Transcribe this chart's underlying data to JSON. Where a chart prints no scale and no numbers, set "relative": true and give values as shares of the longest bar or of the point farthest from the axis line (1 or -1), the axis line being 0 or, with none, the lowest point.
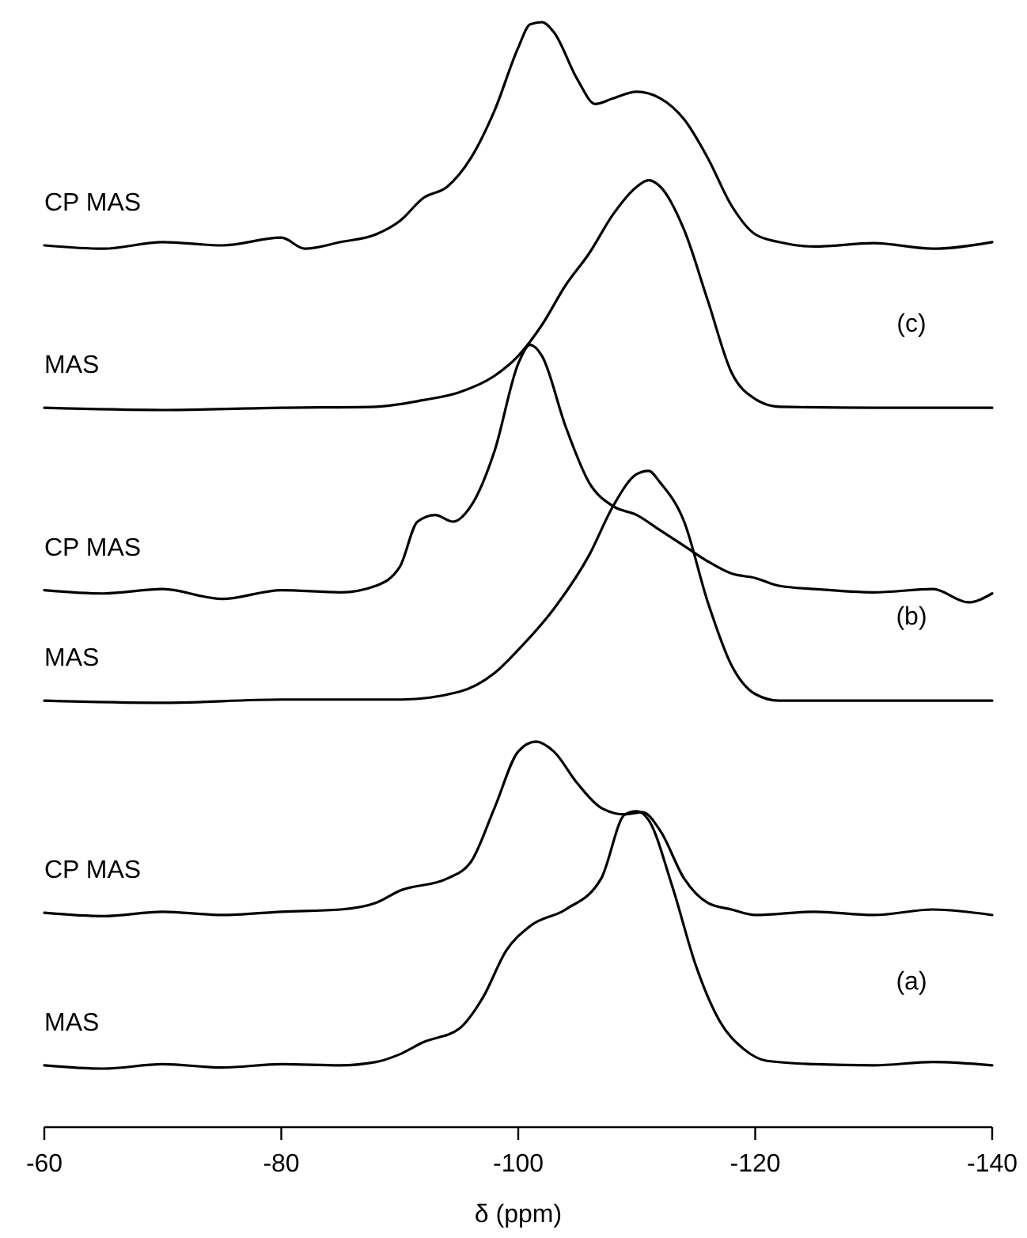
{
  "chart_data": {
    "type": "line",
    "relative": true,
    "xlabel": "δ (ppm)",
    "xlim": [
      -60,
      -140
    ],
    "xticks": [
      -60,
      -80,
      -100,
      -120,
      -140
    ],
    "marker": "none",
    "line_style": "solid",
    "series": [
      {
        "name": "MAS",
        "color": "#000000",
        "x": [
          -60,
          -65,
          -70,
          -75,
          -80,
          -85,
          -88,
          -90,
          -92,
          -95,
          -97,
          -99,
          -101,
          -104,
          -107,
          -109,
          -110,
          -111,
          -113,
          -115,
          -117,
          -119,
          -121,
          -125,
          -130,
          -135,
          -140
        ],
        "values": [
          0.056,
          0.053,
          0.057,
          0.054,
          0.057,
          0.056,
          0.059,
          0.066,
          0.077,
          0.089,
          0.117,
          0.16,
          0.182,
          0.197,
          0.225,
          0.283,
          0.286,
          0.278,
          0.218,
          0.146,
          0.096,
          0.071,
          0.06,
          0.057,
          0.056,
          0.059,
          0.056
        ]
      },
      {
        "name": "CP MAS",
        "color": "#000000",
        "x": [
          -60,
          -65,
          -70,
          -75,
          -80,
          -85,
          -88,
          -90,
          -94,
          -96,
          -98,
          -100,
          -101.5,
          -103,
          -105,
          -107,
          -109,
          -110.5,
          -112,
          -114,
          -116,
          -118,
          -120,
          -125,
          -130,
          -135,
          -140
        ],
        "values": [
          0.194,
          0.191,
          0.195,
          0.192,
          0.195,
          0.197,
          0.203,
          0.214,
          0.225,
          0.24,
          0.289,
          0.34,
          0.349,
          0.34,
          0.311,
          0.289,
          0.283,
          0.285,
          0.268,
          0.225,
          0.203,
          0.197,
          0.192,
          0.195,
          0.192,
          0.197,
          0.192
        ]
      },
      {
        "name": "MAS",
        "color": "#000000",
        "x": [
          -60,
          -70,
          -80,
          -90,
          -95,
          -98,
          -100,
          -103,
          -106,
          -108,
          -110,
          -111,
          -112,
          -114,
          -116,
          -118,
          -120,
          -122,
          -130,
          -140
        ],
        "values": [
          0.386,
          0.384,
          0.387,
          0.387,
          0.394,
          0.411,
          0.432,
          0.469,
          0.518,
          0.562,
          0.591,
          0.594,
          0.583,
          0.548,
          0.475,
          0.418,
          0.392,
          0.386,
          0.386,
          0.386
        ]
      },
      {
        "name": "CP MAS",
        "color": "#000000",
        "x": [
          -60,
          -65,
          -70,
          -75,
          -80,
          -85,
          -88,
          -90,
          -91.5,
          -93,
          -94.5,
          -96,
          -98,
          -100,
          -101,
          -102,
          -104,
          -106,
          -108,
          -110,
          -112,
          -114,
          -116,
          -118,
          -120,
          -122,
          -125,
          -130,
          -135,
          -138,
          -140
        ],
        "values": [
          0.486,
          0.483,
          0.487,
          0.478,
          0.486,
          0.484,
          0.49,
          0.507,
          0.548,
          0.554,
          0.548,
          0.562,
          0.612,
          0.691,
          0.708,
          0.698,
          0.634,
          0.583,
          0.562,
          0.554,
          0.54,
          0.526,
          0.512,
          0.501,
          0.497,
          0.49,
          0.487,
          0.484,
          0.487,
          0.475,
          0.483
        ]
      },
      {
        "name": "MAS",
        "color": "#000000",
        "x": [
          -60,
          -70,
          -80,
          -88,
          -92,
          -95,
          -98,
          -100,
          -102,
          -104,
          -106,
          -108,
          -110,
          -111,
          -112,
          -114,
          -116,
          -118,
          -120,
          -122,
          -130,
          -140
        ],
        "values": [
          0.651,
          0.649,
          0.651,
          0.652,
          0.658,
          0.665,
          0.68,
          0.698,
          0.726,
          0.762,
          0.791,
          0.826,
          0.851,
          0.857,
          0.851,
          0.812,
          0.748,
          0.683,
          0.659,
          0.652,
          0.651,
          0.651
        ]
      },
      {
        "name": "CP MAS",
        "color": "#000000",
        "x": [
          -60,
          -65,
          -70,
          -75,
          -80,
          -82,
          -85,
          -88,
          -90,
          -92,
          -94,
          -96,
          -98,
          -100,
          -101,
          -102,
          -103,
          -105,
          -106.5,
          -108,
          -110,
          -112,
          -114,
          -116,
          -118,
          -120,
          -122,
          -125,
          -130,
          -135,
          -140
        ],
        "values": [
          0.798,
          0.795,
          0.801,
          0.798,
          0.805,
          0.795,
          0.801,
          0.808,
          0.82,
          0.841,
          0.851,
          0.877,
          0.92,
          0.977,
          0.998,
          1,
          0.991,
          0.948,
          0.926,
          0.931,
          0.937,
          0.931,
          0.912,
          0.877,
          0.834,
          0.808,
          0.801,
          0.797,
          0.8,
          0.795,
          0.801
        ]
      }
    ],
    "annotations": [
      "(a)",
      "(b)",
      "(c)"
    ]
  }
}
